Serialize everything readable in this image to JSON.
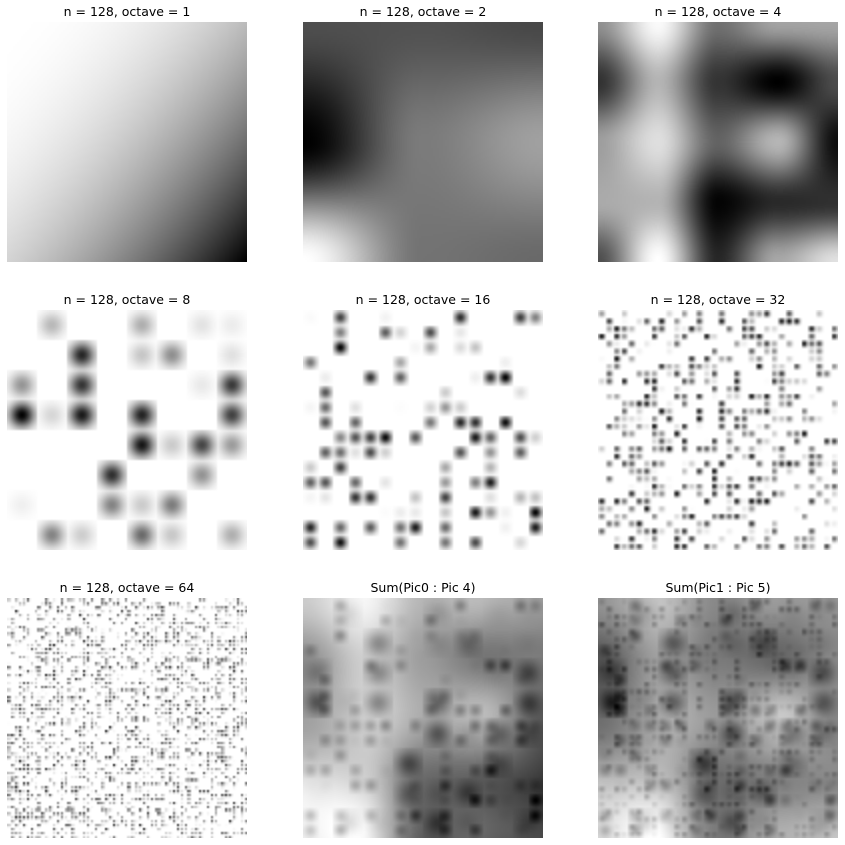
{
  "figure": {
    "panels": [
      {
        "title": "n = 128, octave = 1",
        "kind": "octave",
        "octave": 1
      },
      {
        "title": "n = 128, octave = 2",
        "kind": "octave",
        "octave": 2
      },
      {
        "title": "n = 128, octave = 4",
        "kind": "octave",
        "octave": 4
      },
      {
        "title": "n = 128, octave = 8",
        "kind": "octave",
        "octave": 8
      },
      {
        "title": "n = 128, octave = 16",
        "kind": "octave",
        "octave": 16
      },
      {
        "title": "n = 128, octave = 32",
        "kind": "octave",
        "octave": 32
      },
      {
        "title": "n = 128, octave = 64",
        "kind": "octave",
        "octave": 64
      },
      {
        "title": "Sum(Pic0 : Pic 4)",
        "kind": "sum",
        "from": 0,
        "to": 4
      },
      {
        "title": "Sum(Pic1 : Pic 5)",
        "kind": "sum",
        "from": 1,
        "to": 5
      }
    ],
    "colormap": "gray_r",
    "colors": {
      "background": "#ffffff",
      "dark": "#000000",
      "light": "#ffffff"
    }
  }
}
